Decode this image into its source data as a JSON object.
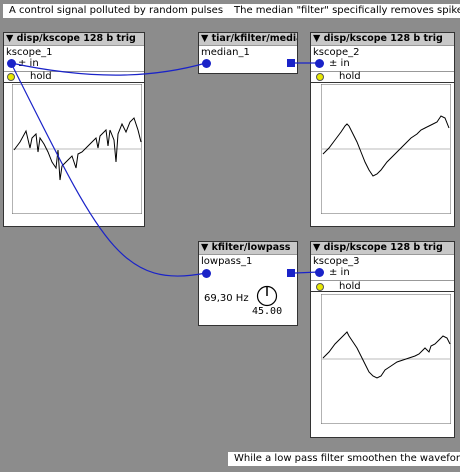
{
  "comments": {
    "c1": "A control signal polluted by random pulses",
    "c2": "The median \"filter\" specifically removes spikes",
    "c3": "While a low pass filter smoothen the waveform"
  },
  "objects": {
    "kscope1": {
      "title": "▼ disp/kscope 128 b trig",
      "name": "kscope_1",
      "inlet": "± in",
      "hold": "hold"
    },
    "median1": {
      "title": "▼ tiar/kfilter/median",
      "name": "median_1"
    },
    "kscope2": {
      "title": "▼ disp/kscope 128 b trig",
      "name": "kscope_2",
      "inlet": "± in",
      "hold": "hold"
    },
    "lowpass1": {
      "title": "▼ kfilter/lowpass",
      "name": "lowpass_1",
      "freq": "69,30 Hz",
      "knob_value": "45.00"
    },
    "kscope3": {
      "title": "▼ disp/kscope 128 b trig",
      "name": "kscope_3",
      "inlet": "± in",
      "hold": "hold"
    }
  },
  "colors": {
    "wire": "#1a23c8",
    "led": "#e8e800",
    "background": "#8c8c8c"
  },
  "icons": {
    "knob": "knob-icon",
    "led": "led-icon"
  }
}
